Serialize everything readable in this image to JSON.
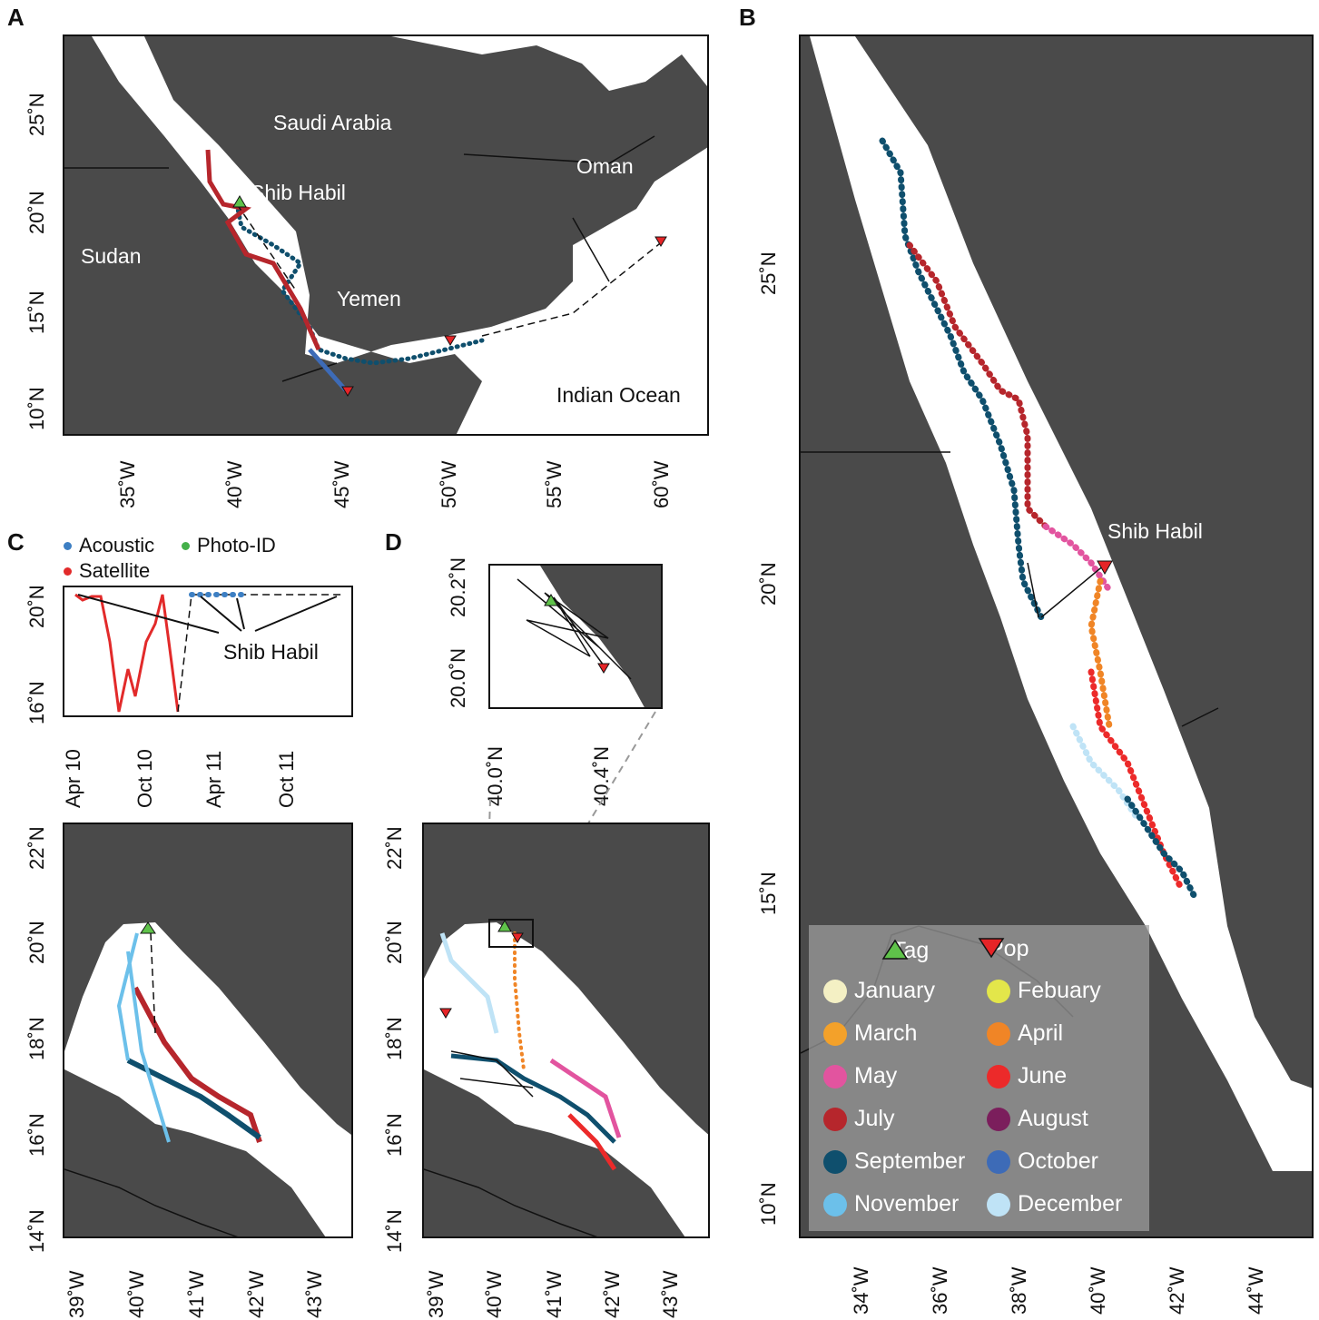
{
  "panels": {
    "a": {
      "letter": "A",
      "labels": {
        "saudi": "Saudi Arabia",
        "oman": "Oman",
        "sudan": "Sudan",
        "yemen": "Yemen",
        "indian": "Indian Ocean",
        "site": "Shib Habil"
      },
      "y_ticks": [
        "25˚N",
        "20˚N",
        "15˚N",
        "10˚N"
      ],
      "x_ticks": [
        "35˚W",
        "40˚W",
        "45˚W",
        "50˚W",
        "55˚W",
        "60˚W"
      ]
    },
    "b": {
      "letter": "B",
      "site": "Shib Habil",
      "y_ticks": [
        "25˚N",
        "20˚N",
        "15˚N",
        "10˚N"
      ],
      "x_ticks": [
        "34˚W",
        "36˚W",
        "38˚W",
        "40˚W",
        "42˚W",
        "44˚W"
      ]
    },
    "c": {
      "letter": "C",
      "legend": {
        "acoustic": "Acoustic",
        "photo": "Photo-ID",
        "satellite": "Satellite"
      },
      "annotation": "Shib Habil",
      "time_y_ticks": [
        "20˚N",
        "16˚N"
      ],
      "time_x_ticks": [
        "Apr 10",
        "Oct 10",
        "Apr 11",
        "Oct 11"
      ],
      "map_y_ticks": [
        "22˚N",
        "20˚N",
        "18˚N",
        "16˚N",
        "14˚N"
      ],
      "map_x_ticks": [
        "39˚W",
        "40˚W",
        "41˚W",
        "42˚W",
        "43˚W"
      ]
    },
    "d": {
      "letter": "D",
      "inset_y_ticks": [
        "20.2˚N",
        "20.0˚N"
      ],
      "inset_x_ticks": [
        "40.0˚N",
        "40.4˚N"
      ],
      "map_y_ticks": [
        "22˚N",
        "20˚N",
        "18˚N",
        "16˚N",
        "14˚N"
      ],
      "map_x_ticks": [
        "39˚W",
        "40˚W",
        "41˚W",
        "42˚W",
        "43˚W"
      ]
    }
  },
  "legend": {
    "tag": "Tag",
    "pop": "Pop",
    "months": [
      {
        "label": "January",
        "color": "#f4f0c4"
      },
      {
        "label": "Febuary",
        "color": "#e3e64a"
      },
      {
        "label": "March",
        "color": "#f3a12a"
      },
      {
        "label": "April",
        "color": "#f08526"
      },
      {
        "label": "May",
        "color": "#e2549f"
      },
      {
        "label": "June",
        "color": "#ec2a2a"
      },
      {
        "label": "July",
        "color": "#b6262c"
      },
      {
        "label": "August",
        "color": "#7b1e5c"
      },
      {
        "label": "September",
        "color": "#0f4f6d"
      },
      {
        "label": "October",
        "color": "#3d6bb7"
      },
      {
        "label": "November",
        "color": "#6cc0ea"
      },
      {
        "label": "December",
        "color": "#bfe3f6"
      }
    ]
  },
  "colors": {
    "land": "#4a4a4a",
    "sea": "#ffffff",
    "tag": "#5fc24a",
    "pop": "#e62427",
    "acoustic": "#3d7fc3",
    "photo": "#44b04a",
    "satellite": "#e22a2a"
  }
}
